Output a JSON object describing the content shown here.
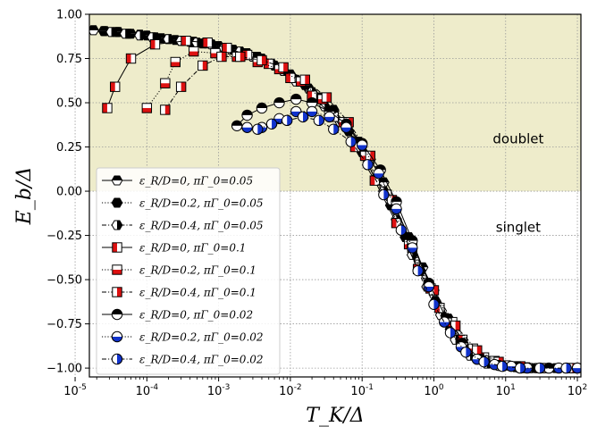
{
  "chart_data": {
    "type": "scatter",
    "title": "",
    "xlabel": "T_K/Δ",
    "ylabel": "E_b/Δ",
    "x_scale": "log",
    "xlim": [
      1.58e-05,
      112
    ],
    "ylim": [
      -1.05,
      1.0
    ],
    "grid": true,
    "legend_position": "lower-left",
    "x_ticks": [
      1e-05,
      0.0001,
      0.001,
      0.01,
      0.1,
      1,
      10,
      100
    ],
    "x_tick_labels": [
      {
        "base": "10",
        "exp": "-5"
      },
      {
        "base": "10",
        "exp": "-4"
      },
      {
        "base": "10",
        "exp": "-3"
      },
      {
        "base": "10",
        "exp": "-2"
      },
      {
        "base": "10",
        "exp": "-1"
      },
      {
        "base": "10",
        "exp": "0"
      },
      {
        "base": "10",
        "exp": "1"
      },
      {
        "base": "10",
        "exp": "2"
      }
    ],
    "y_ticks": [
      -1.0,
      -0.75,
      -0.5,
      -0.25,
      0.0,
      0.25,
      0.5,
      0.75,
      1.0
    ],
    "y_tick_labels": [
      "−1.00",
      "−0.75",
      "−0.50",
      "−0.25",
      "0.00",
      "0.25",
      "0.50",
      "0.75",
      "1.00"
    ],
    "region_labels": [
      {
        "text": "doublet",
        "x": 15,
        "y": 0.27
      },
      {
        "text": "singlet",
        "x": 15,
        "y": -0.23
      }
    ],
    "doublet_region": {
      "y_from": 0.0,
      "y_to": 1.0,
      "color": "#eeeccb"
    },
    "series": [
      {
        "name": "ε_R/D=0, πΓ_0=0.05",
        "marker": "hexagon",
        "fill": "#000000",
        "line": "solid",
        "x": [
          1.8e-05,
          2.6e-05,
          3.8e-05,
          5.5e-05,
          8e-05,
          0.00013,
          0.0002,
          0.0003,
          0.00045,
          0.0007,
          0.001,
          0.0015,
          0.0022,
          0.0035,
          0.0055,
          0.008,
          0.012,
          0.018,
          0.027,
          0.04,
          0.06,
          0.09,
          0.13,
          0.2,
          0.3,
          0.45,
          0.7,
          1.0,
          1.6,
          2.5,
          4,
          7,
          12,
          20,
          40,
          80,
          105
        ],
        "y": [
          0.91,
          0.905,
          0.9,
          0.89,
          0.885,
          0.87,
          0.86,
          0.85,
          0.845,
          0.835,
          0.82,
          0.8,
          0.78,
          0.76,
          0.72,
          0.68,
          0.63,
          0.58,
          0.52,
          0.46,
          0.38,
          0.28,
          0.18,
          0.05,
          -0.1,
          -0.26,
          -0.43,
          -0.56,
          -0.72,
          -0.84,
          -0.93,
          -0.975,
          -0.99,
          -0.995,
          -1.0,
          -1.0,
          -1.0
        ]
      },
      {
        "name": "ε_R/D=0.2, πΓ_0=0.05",
        "marker": "hexagon",
        "fill": "#000000",
        "line": "dotted",
        "x": [
          2.5e-05,
          4e-05,
          6e-05,
          0.0001,
          0.00016,
          0.00025,
          0.0004,
          0.0006,
          0.001,
          0.0016,
          0.0025,
          0.004,
          0.006,
          0.01,
          0.016,
          0.025,
          0.04,
          0.065,
          0.1,
          0.16,
          0.25,
          0.4,
          0.65,
          1.05,
          1.7,
          2.8,
          4.5,
          8,
          14,
          25,
          50,
          95
        ],
        "y": [
          0.905,
          0.9,
          0.89,
          0.88,
          0.865,
          0.855,
          0.845,
          0.835,
          0.82,
          0.8,
          0.78,
          0.75,
          0.71,
          0.66,
          0.6,
          0.53,
          0.44,
          0.34,
          0.22,
          0.08,
          -0.08,
          -0.26,
          -0.45,
          -0.62,
          -0.78,
          -0.89,
          -0.95,
          -0.985,
          -0.995,
          -1.0,
          -1.0,
          -1.0
        ]
      },
      {
        "name": "ε_R/D=0.4, πΓ_0=0.05",
        "marker": "hexagon",
        "fill": "#000000",
        "line": "dashdot",
        "x": [
          3.2e-05,
          5e-05,
          8e-05,
          0.00012,
          0.0002,
          0.0003,
          0.0005,
          0.0008,
          0.0012,
          0.002,
          0.003,
          0.005,
          0.008,
          0.012,
          0.02,
          0.03,
          0.05,
          0.08,
          0.12,
          0.2,
          0.3,
          0.5,
          0.8,
          1.25,
          2,
          3.2,
          5.5,
          9,
          16,
          30
        ],
        "y": [
          0.9,
          0.89,
          0.88,
          0.87,
          0.86,
          0.85,
          0.84,
          0.83,
          0.81,
          0.79,
          0.76,
          0.72,
          0.68,
          0.62,
          0.56,
          0.48,
          0.39,
          0.28,
          0.15,
          0.0,
          -0.16,
          -0.36,
          -0.54,
          -0.7,
          -0.84,
          -0.93,
          -0.975,
          -0.99,
          -1.0,
          -1.0
        ]
      },
      {
        "name": "ε_R/D=0, πΓ_0=0.1",
        "marker": "square",
        "fill": "#ffffff",
        "line": "solid",
        "x": [
          2.8e-05,
          3.6e-05,
          6e-05,
          0.00013,
          0.00035,
          0.0007,
          0.0013,
          0.0025,
          0.005,
          0.01,
          0.02,
          0.04,
          0.08,
          0.15,
          0.3,
          0.6,
          1.2,
          2.5,
          5,
          10,
          20
        ],
        "y": [
          0.47,
          0.59,
          0.75,
          0.83,
          0.85,
          0.84,
          0.81,
          0.77,
          0.72,
          0.64,
          0.54,
          0.42,
          0.25,
          0.06,
          -0.18,
          -0.44,
          -0.66,
          -0.84,
          -0.94,
          -0.985,
          -1.0
        ]
      },
      {
        "name": "ε_R/D=0.2, πΓ_0=0.1",
        "marker": "square",
        "fill": "#dd1111",
        "line": "dotted",
        "x": [
          0.0001,
          0.00018,
          0.00025,
          0.00045,
          0.0009,
          0.0018,
          0.0035,
          0.007,
          0.014,
          0.028,
          0.055,
          0.11,
          0.22,
          0.45,
          0.9,
          1.8,
          3.5,
          7,
          14,
          30,
          75
        ],
        "y": [
          0.47,
          0.61,
          0.73,
          0.79,
          0.78,
          0.76,
          0.73,
          0.69,
          0.62,
          0.52,
          0.39,
          0.2,
          -0.02,
          -0.3,
          -0.55,
          -0.74,
          -0.89,
          -0.96,
          -0.99,
          -1.0,
          -1.0
        ]
      },
      {
        "name": "ε_R/D=0.4, πΓ_0=0.1",
        "marker": "square",
        "fill": "#dd1111",
        "line": "dashdot",
        "x": [
          0.00018,
          0.0003,
          0.0006,
          0.0011,
          0.002,
          0.004,
          0.008,
          0.016,
          0.032,
          0.065,
          0.13,
          0.26,
          0.5,
          1.0,
          2.0,
          4.0,
          8,
          16,
          35,
          85
        ],
        "y": [
          0.46,
          0.59,
          0.71,
          0.76,
          0.76,
          0.74,
          0.7,
          0.63,
          0.53,
          0.39,
          0.2,
          -0.05,
          -0.32,
          -0.56,
          -0.76,
          -0.9,
          -0.965,
          -0.99,
          -1.0,
          -1.0
        ]
      },
      {
        "name": "ε_R/D=0, πΓ_0=0.02",
        "marker": "circle",
        "fill": "#ffffff",
        "line": "solid",
        "x": [
          0.0018,
          0.0025,
          0.004,
          0.007,
          0.012,
          0.02,
          0.035,
          0.06,
          0.1,
          0.18,
          0.3,
          0.5,
          0.85,
          1.5,
          2.5,
          4.5,
          8,
          15,
          40,
          100
        ],
        "y": [
          0.37,
          0.43,
          0.47,
          0.5,
          0.52,
          0.5,
          0.45,
          0.38,
          0.27,
          0.12,
          -0.06,
          -0.28,
          -0.52,
          -0.72,
          -0.86,
          -0.95,
          -0.985,
          -0.995,
          -1.0,
          -1.0
        ]
      },
      {
        "name": "ε_R/D=0.2, πΓ_0=0.02",
        "marker": "circle",
        "fill": "#1133cc",
        "line": "dotted",
        "x": [
          0.0025,
          0.004,
          0.007,
          0.012,
          0.02,
          0.035,
          0.06,
          0.1,
          0.17,
          0.3,
          0.5,
          0.85,
          1.4,
          2.4,
          4,
          7,
          12,
          20,
          55,
          100
        ],
        "y": [
          0.36,
          0.36,
          0.41,
          0.45,
          0.45,
          0.42,
          0.36,
          0.26,
          0.1,
          -0.1,
          -0.32,
          -0.54,
          -0.74,
          -0.88,
          -0.95,
          -0.98,
          -0.99,
          -1.0,
          -1.0,
          -1.0
        ]
      },
      {
        "name": "ε_R/D=0.4, πΓ_0=0.02",
        "marker": "circle",
        "fill": "#1133cc",
        "line": "dashdot",
        "x": [
          0.0035,
          0.0055,
          0.009,
          0.015,
          0.025,
          0.04,
          0.07,
          0.12,
          0.2,
          0.35,
          0.6,
          1.0,
          1.7,
          2.8,
          5,
          9,
          16,
          30,
          70
        ],
        "y": [
          0.35,
          0.38,
          0.4,
          0.42,
          0.4,
          0.35,
          0.28,
          0.15,
          -0.02,
          -0.22,
          -0.45,
          -0.64,
          -0.8,
          -0.91,
          -0.965,
          -0.99,
          -1.0,
          -1.0,
          -1.0
        ]
      }
    ]
  }
}
